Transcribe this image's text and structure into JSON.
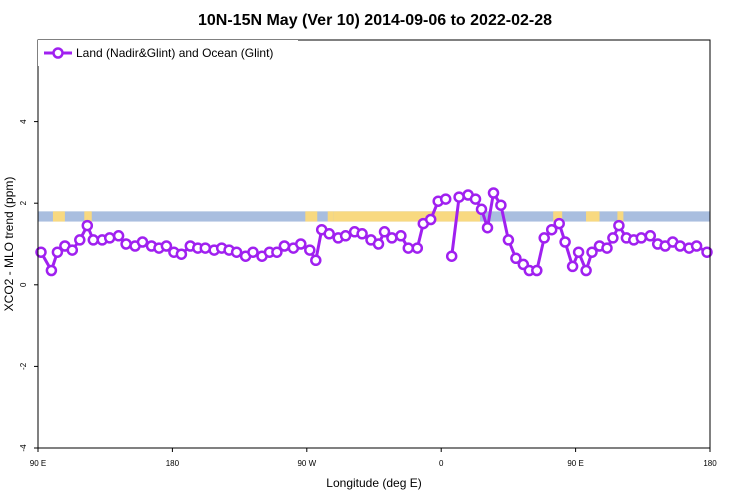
{
  "chart_data": {
    "type": "line",
    "title": "10N-15N May (Ver 10)   2014-09-06 to 2022-02-28",
    "xlabel": "Longitude (deg E)",
    "ylabel": "XCO2 - MLO trend (ppm)",
    "xlim": [
      90,
      540
    ],
    "ylim": [
      -4,
      6
    ],
    "x_ticks": [
      {
        "value": 90,
        "label": "90 E"
      },
      {
        "value": 180,
        "label": "180"
      },
      {
        "value": 270,
        "label": "90 W"
      },
      {
        "value": 360,
        "label": "0"
      },
      {
        "value": 450,
        "label": "90 E"
      },
      {
        "value": 540,
        "label": "180"
      }
    ],
    "y_ticks": [
      {
        "value": -4,
        "label": "-4"
      },
      {
        "value": -2,
        "label": "-2"
      },
      {
        "value": 0,
        "label": "0"
      },
      {
        "value": 2,
        "label": "2"
      },
      {
        "value": 4,
        "label": "4"
      }
    ],
    "legend": {
      "position": "top-left",
      "entries": [
        "Land (Nadir&Glint) and Ocean (Glint)"
      ]
    },
    "color": "#a020f0",
    "land_mask": {
      "y_range": [
        1.55,
        1.8
      ],
      "ocean_color": "#a9bedf",
      "land_color": "#f8d980",
      "land_segments": [
        [
          100,
          108
        ],
        [
          121,
          126
        ],
        [
          269,
          277
        ],
        [
          284,
          288
        ],
        [
          288,
          386
        ],
        [
          435,
          441
        ],
        [
          457,
          466
        ],
        [
          478,
          482
        ]
      ]
    },
    "series": [
      {
        "name": "Land (Nadir&Glint) and Ocean (Glint)",
        "segments": [
          [
            [
              92,
              0.8
            ],
            [
              99,
              0.35
            ],
            [
              103,
              0.8
            ],
            [
              108,
              0.95
            ],
            [
              113,
              0.85
            ],
            [
              118,
              1.1
            ],
            [
              123,
              1.45
            ],
            [
              127,
              1.1
            ],
            [
              133,
              1.1
            ],
            [
              138,
              1.15
            ],
            [
              144,
              1.2
            ],
            [
              149,
              1.0
            ],
            [
              155,
              0.95
            ],
            [
              160,
              1.05
            ],
            [
              166,
              0.95
            ],
            [
              171,
              0.9
            ],
            [
              176,
              0.95
            ],
            [
              181,
              0.8
            ],
            [
              186,
              0.75
            ],
            [
              192,
              0.95
            ],
            [
              197,
              0.9
            ],
            [
              202,
              0.9
            ],
            [
              208,
              0.85
            ],
            [
              213,
              0.9
            ],
            [
              218,
              0.85
            ],
            [
              223,
              0.8
            ],
            [
              229,
              0.7
            ],
            [
              234,
              0.8
            ],
            [
              240,
              0.7
            ],
            [
              245,
              0.8
            ],
            [
              250,
              0.8
            ],
            [
              255,
              0.95
            ],
            [
              261,
              0.9
            ],
            [
              266,
              1.0
            ],
            [
              272,
              0.85
            ],
            [
              276,
              0.6
            ],
            [
              280,
              1.35
            ],
            [
              285,
              1.25
            ],
            [
              291,
              1.15
            ],
            [
              296,
              1.2
            ],
            [
              302,
              1.3
            ],
            [
              307,
              1.25
            ],
            [
              313,
              1.1
            ],
            [
              318,
              1.0
            ],
            [
              322,
              1.3
            ],
            [
              327,
              1.15
            ],
            [
              333,
              1.2
            ],
            [
              338,
              0.9
            ],
            [
              344,
              0.9
            ],
            [
              348,
              1.5
            ],
            [
              353,
              1.6
            ],
            [
              358,
              2.05
            ],
            [
              363,
              2.1
            ]
          ],
          [
            [
              367,
              0.7
            ],
            [
              372,
              2.15
            ],
            [
              378,
              2.2
            ],
            [
              383,
              2.1
            ],
            [
              387,
              1.85
            ],
            [
              391,
              1.4
            ],
            [
              395,
              2.25
            ],
            [
              400,
              1.95
            ],
            [
              405,
              1.1
            ],
            [
              410,
              0.65
            ],
            [
              415,
              0.5
            ],
            [
              419,
              0.35
            ],
            [
              424,
              0.35
            ],
            [
              429,
              1.15
            ],
            [
              434,
              1.35
            ],
            [
              439,
              1.5
            ],
            [
              443,
              1.05
            ],
            [
              448,
              0.45
            ],
            [
              452,
              0.8
            ],
            [
              457,
              0.35
            ],
            [
              461,
              0.8
            ],
            [
              466,
              0.95
            ],
            [
              471,
              0.9
            ],
            [
              475,
              1.15
            ],
            [
              479,
              1.45
            ],
            [
              484,
              1.15
            ],
            [
              489,
              1.1
            ],
            [
              494,
              1.15
            ],
            [
              500,
              1.2
            ],
            [
              505,
              1.0
            ],
            [
              510,
              0.95
            ],
            [
              515,
              1.05
            ],
            [
              520,
              0.95
            ],
            [
              526,
              0.9
            ],
            [
              531,
              0.95
            ],
            [
              538,
              0.8
            ]
          ]
        ]
      }
    ]
  }
}
